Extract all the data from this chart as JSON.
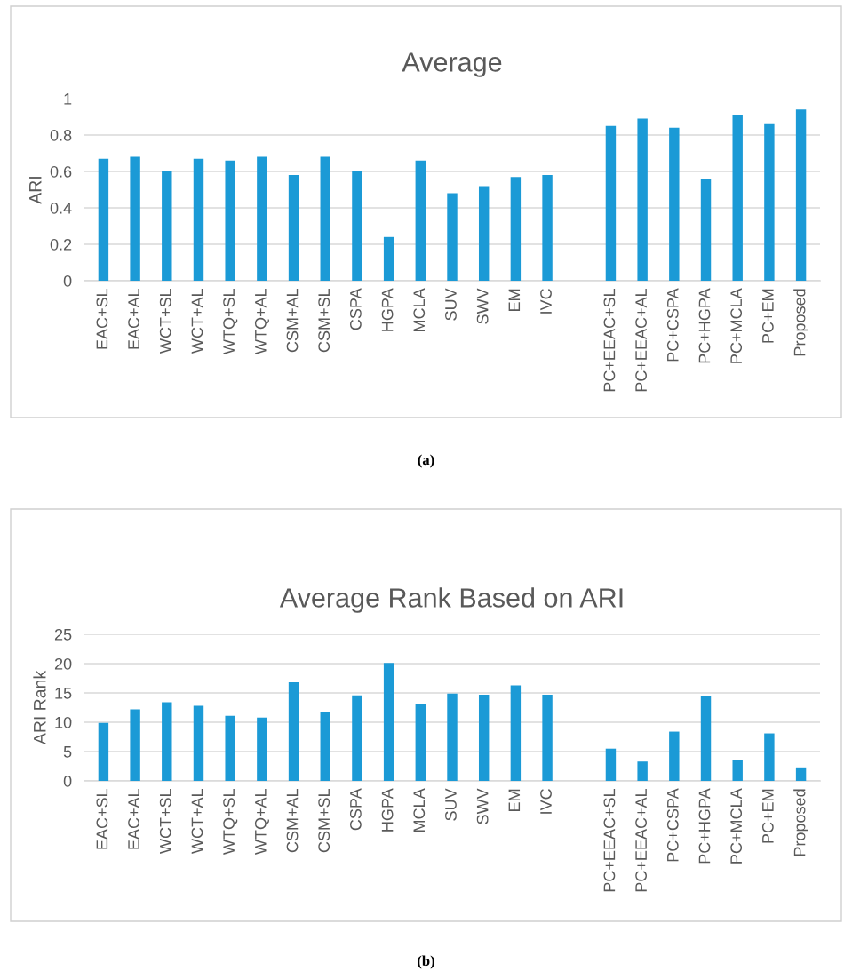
{
  "chart_data": [
    {
      "type": "bar",
      "title": "Average",
      "ylabel": "ARI",
      "categories": [
        "EAC+SL",
        "EAC+AL",
        "WCT+SL",
        "WCT+AL",
        "WTQ+SL",
        "WTQ+AL",
        "CSM+AL",
        "CSM+SL",
        "CSPA",
        "HGPA",
        "MCLA",
        "SUV",
        "SWV",
        "EM",
        "IVC",
        null,
        "PC+EEAC+SL",
        "PC+EEAC+AL",
        "PC+CSPA",
        "PC+HGPA",
        "PC+MCLA",
        "PC+EM",
        "Proposed"
      ],
      "values": [
        0.67,
        0.68,
        0.6,
        0.67,
        0.66,
        0.68,
        0.58,
        0.68,
        0.6,
        0.24,
        0.66,
        0.48,
        0.52,
        0.57,
        0.58,
        null,
        0.85,
        0.89,
        0.84,
        0.56,
        0.91,
        0.86,
        0.94
      ],
      "color": "#1b9ad6",
      "ylim": [
        0,
        1
      ],
      "yticks": [
        0,
        0.2,
        0.4,
        0.6,
        0.8,
        1
      ],
      "grid": "y",
      "legend": false,
      "annotations": [
        "(a)"
      ]
    },
    {
      "type": "bar",
      "title": "Average Rank Based on ARI",
      "ylabel": "ARI Rank",
      "categories": [
        "EAC+SL",
        "EAC+AL",
        "WCT+SL",
        "WCT+AL",
        "WTQ+SL",
        "WTQ+AL",
        "CSM+AL",
        "CSM+SL",
        "CSPA",
        "HGPA",
        "MCLA",
        "SUV",
        "SWV",
        "EM",
        "IVC",
        null,
        "PC+EEAC+SL",
        "PC+EEAC+AL",
        "PC+CSPA",
        "PC+HGPA",
        "PC+MCLA",
        "PC+EM",
        "Proposed"
      ],
      "values": [
        9.9,
        12.2,
        13.4,
        12.8,
        11.1,
        10.8,
        16.8,
        11.7,
        14.6,
        20.1,
        13.2,
        14.9,
        14.7,
        16.3,
        14.7,
        null,
        5.5,
        3.3,
        8.4,
        14.4,
        3.5,
        8.1,
        2.3
      ],
      "color": "#1b9ad6",
      "ylim": [
        0,
        25
      ],
      "yticks": [
        0,
        5,
        10,
        15,
        20,
        25
      ],
      "grid": "y",
      "legend": false,
      "annotations": [
        "(b)"
      ]
    }
  ]
}
